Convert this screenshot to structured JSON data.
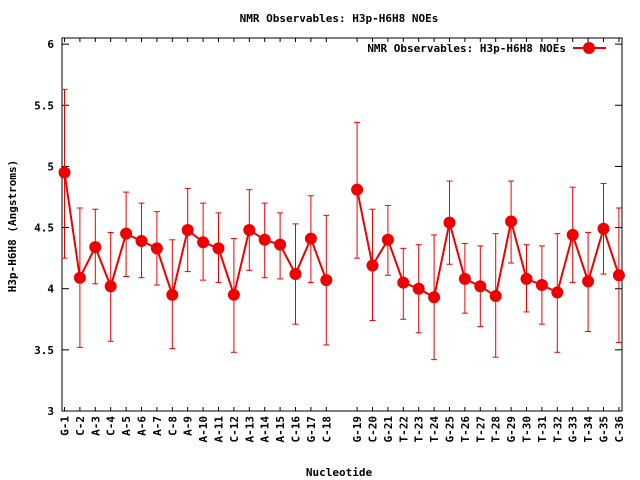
{
  "chart_data": {
    "type": "line",
    "title": "NMR Observables: H3p-H6H8 NOEs",
    "xlabel": "Nucleotide",
    "ylabel": "H3p-H6H8 (Angstroms)",
    "ylim": [
      3,
      6.05
    ],
    "yticks": [
      "3",
      "3.5",
      "4",
      "4.5",
      "5",
      "5.5",
      "6"
    ],
    "grid": false,
    "legend_position": "top-right",
    "series_color": "#ee0000",
    "categories": [
      "G-1",
      "C-2",
      "A-3",
      "C-4",
      "A-5",
      "A-6",
      "A-7",
      "C-8",
      "A-9",
      "A-10",
      "A-11",
      "C-12",
      "A-13",
      "A-14",
      "A-15",
      "C-16",
      "G-17",
      "C-18",
      "G-19",
      "C-20",
      "G-21",
      "T-22",
      "T-23",
      "T-24",
      "G-25",
      "T-26",
      "T-27",
      "T-28",
      "G-29",
      "T-30",
      "T-31",
      "T-32",
      "G-33",
      "T-34",
      "G-35",
      "C-36"
    ],
    "x_gap_before": "G-19",
    "series": [
      {
        "name": "NMR Observables: H3p-H6H8 NOEs",
        "values": [
          4.95,
          4.09,
          4.34,
          4.02,
          4.45,
          4.39,
          4.33,
          3.95,
          4.48,
          4.38,
          4.33,
          3.95,
          4.48,
          4.4,
          4.36,
          4.12,
          4.41,
          4.07,
          4.81,
          4.19,
          4.4,
          4.05,
          4.0,
          3.93,
          4.54,
          4.08,
          4.02,
          3.94,
          4.55,
          4.08,
          4.03,
          3.97,
          4.44,
          4.06,
          4.49,
          4.11
        ],
        "err_low": [
          4.25,
          3.52,
          4.04,
          3.57,
          4.1,
          4.09,
          4.03,
          3.51,
          4.14,
          4.07,
          4.05,
          3.48,
          4.15,
          4.09,
          4.08,
          3.71,
          4.05,
          3.54,
          4.25,
          3.74,
          4.11,
          3.75,
          3.64,
          3.42,
          4.2,
          3.8,
          3.69,
          3.44,
          4.21,
          3.81,
          3.71,
          3.48,
          4.05,
          3.65,
          4.12,
          3.56
        ],
        "err_high": [
          5.63,
          4.66,
          4.65,
          4.46,
          4.79,
          4.7,
          4.63,
          4.4,
          4.82,
          4.7,
          4.62,
          4.41,
          4.81,
          4.7,
          4.62,
          4.53,
          4.76,
          4.6,
          5.36,
          4.65,
          4.68,
          4.33,
          4.36,
          4.44,
          4.88,
          4.37,
          4.35,
          4.45,
          4.88,
          4.36,
          4.35,
          4.45,
          4.83,
          4.46,
          4.86,
          4.66
        ]
      }
    ]
  }
}
